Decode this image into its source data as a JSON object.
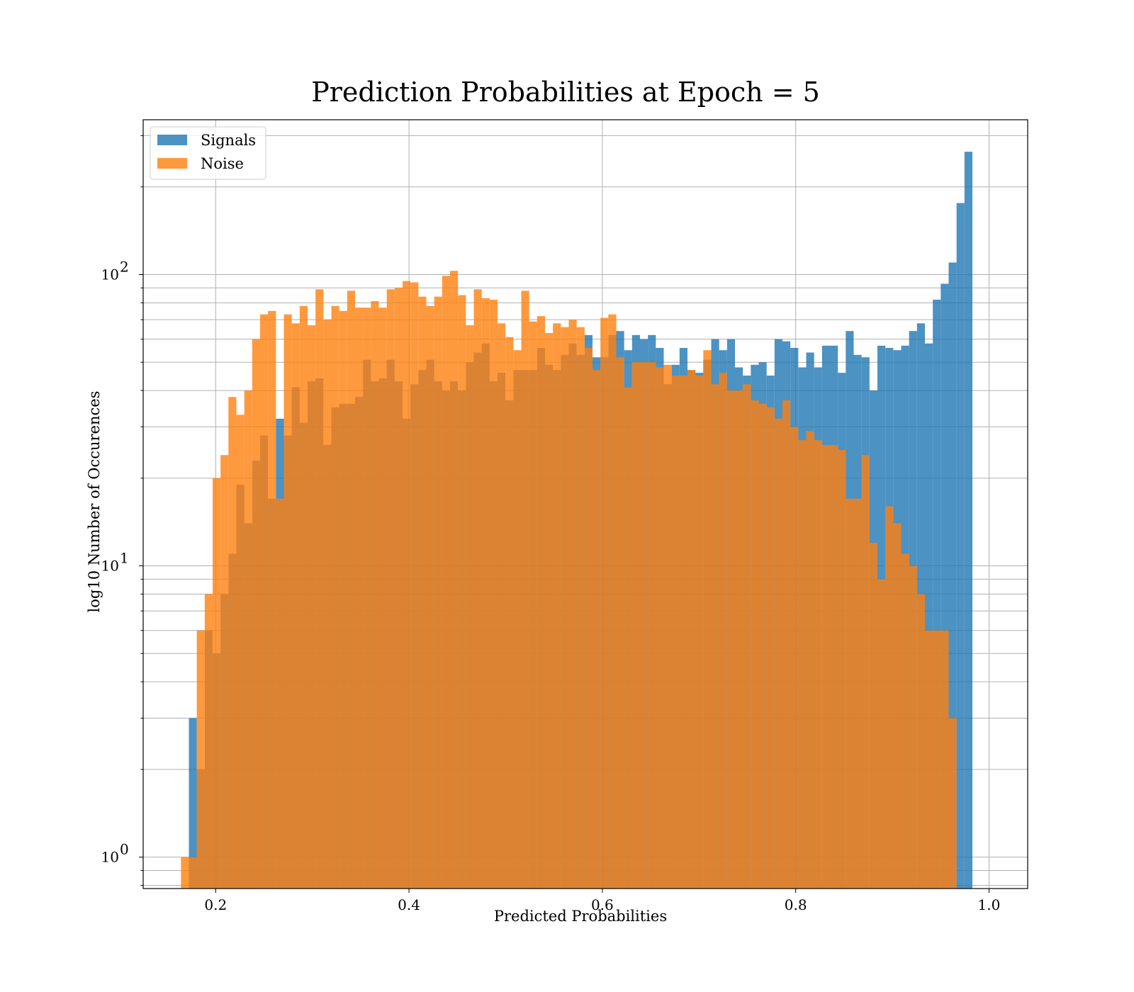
{
  "chart_data": {
    "type": "bar",
    "title": "Prediction Probabilities at Epoch = 5",
    "xlabel": "Predicted Probabilities",
    "ylabel": "log10 Number of Occurences",
    "xlim": [
      0.125,
      1.04
    ],
    "ylim": [
      0.78,
      340
    ],
    "yscale": "log",
    "grid": true,
    "legend_loc": "upper-left",
    "x_ticks": [
      {
        "value": 0.2,
        "label": "0.2"
      },
      {
        "value": 0.4,
        "label": "0.4"
      },
      {
        "value": 0.6,
        "label": "0.6"
      },
      {
        "value": 0.8,
        "label": "0.8"
      },
      {
        "value": 1.0,
        "label": "1.0"
      }
    ],
    "y_ticks": [
      {
        "value": 1,
        "base": "10",
        "exp": "0"
      },
      {
        "value": 10,
        "base": "10",
        "exp": "1"
      },
      {
        "value": 100,
        "base": "10",
        "exp": "2"
      }
    ],
    "series": [
      {
        "name": "Signals",
        "color": "#1f77b4",
        "bins_start": 0.1641,
        "bin_width": 0.008187,
        "values": [
          0,
          3,
          2,
          6,
          5,
          8,
          11,
          19,
          14,
          23,
          28,
          17,
          32,
          28,
          41,
          31,
          43,
          44,
          26,
          35,
          36,
          36,
          38,
          51,
          43,
          44,
          51,
          43,
          32,
          42,
          47,
          51,
          43,
          40,
          43,
          40,
          50,
          54,
          58,
          43,
          46,
          37,
          47,
          47,
          47,
          56,
          49,
          47,
          53,
          58,
          53,
          62,
          52,
          52,
          62,
          64,
          55,
          62,
          60,
          62,
          56,
          42,
          49,
          56,
          47,
          46,
          51,
          60,
          55,
          60,
          48,
          45,
          49,
          50,
          45,
          60,
          59,
          56,
          48,
          54,
          48,
          57,
          57,
          46,
          64,
          53,
          52,
          40,
          57,
          56,
          55,
          57,
          64,
          68,
          58,
          82,
          93,
          110,
          176,
          264
        ]
      },
      {
        "name": "Noise",
        "color": "#ff7f0e",
        "bins_start": 0.1641,
        "bin_width": 0.008187,
        "values": [
          1,
          1,
          6,
          8,
          20,
          24,
          38,
          33,
          40,
          60,
          73,
          75,
          17,
          73,
          68,
          78,
          67,
          89,
          70,
          78,
          75,
          88,
          77,
          77,
          81,
          77,
          89,
          90,
          95,
          94,
          84,
          78,
          84,
          99,
          103,
          85,
          67,
          89,
          83,
          82,
          68,
          61,
          55,
          88,
          69,
          72,
          63,
          68,
          66,
          70,
          66,
          56,
          47,
          71,
          73,
          52,
          41,
          50,
          50,
          50,
          48,
          49,
          45,
          45,
          47,
          45,
          55,
          42,
          46,
          40,
          40,
          42,
          37,
          36,
          35,
          32,
          37,
          30,
          27,
          29,
          27,
          26,
          26,
          25,
          17,
          17,
          24,
          12,
          9,
          16,
          14,
          11,
          10,
          8,
          6,
          6,
          6,
          3,
          0,
          0
        ]
      }
    ]
  }
}
